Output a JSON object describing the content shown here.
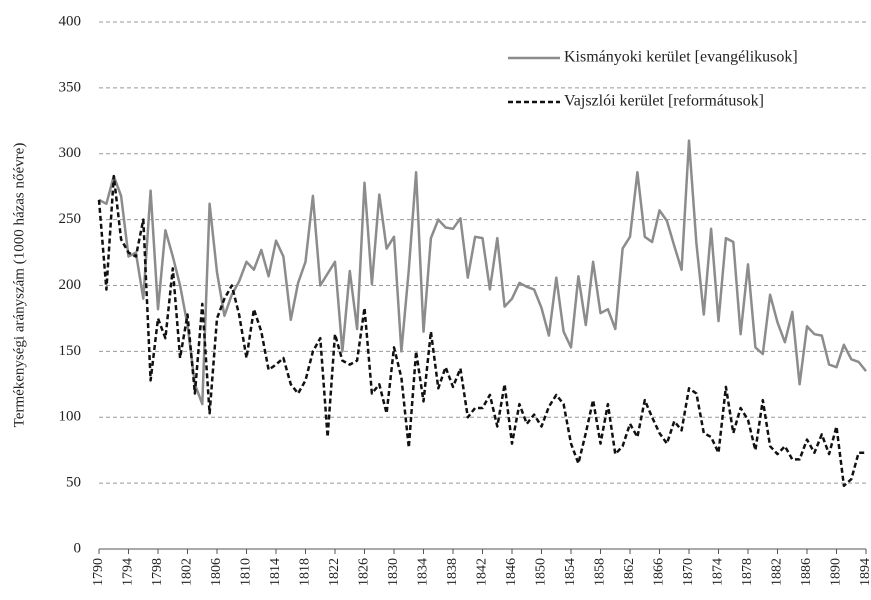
{
  "chart_data": {
    "type": "line",
    "y_label": "Termékenységi arányszám   (1000 házas nőévre)",
    "x": [
      1790,
      1791,
      1792,
      1793,
      1794,
      1795,
      1796,
      1797,
      1798,
      1799,
      1800,
      1801,
      1802,
      1803,
      1804,
      1805,
      1806,
      1807,
      1808,
      1809,
      1810,
      1811,
      1812,
      1813,
      1814,
      1815,
      1816,
      1817,
      1818,
      1819,
      1820,
      1821,
      1822,
      1823,
      1824,
      1825,
      1826,
      1827,
      1828,
      1829,
      1830,
      1831,
      1832,
      1833,
      1834,
      1835,
      1836,
      1837,
      1838,
      1839,
      1840,
      1841,
      1842,
      1843,
      1844,
      1845,
      1846,
      1847,
      1848,
      1849,
      1850,
      1851,
      1852,
      1853,
      1854,
      1855,
      1856,
      1857,
      1858,
      1859,
      1860,
      1861,
      1862,
      1863,
      1864,
      1865,
      1866,
      1867,
      1868,
      1869,
      1870,
      1871,
      1872,
      1873,
      1874,
      1875,
      1876,
      1877,
      1878,
      1879,
      1880,
      1881,
      1882,
      1883,
      1884,
      1885,
      1886,
      1887,
      1888,
      1889,
      1890,
      1891,
      1892,
      1893,
      1894
    ],
    "series": [
      {
        "name": "Kismányoki kerület [evangélikusok]",
        "color": "#8c8c8c",
        "dashed": false,
        "values": [
          265,
          262,
          283,
          268,
          222,
          225,
          190,
          272,
          182,
          242,
          222,
          200,
          170,
          125,
          110,
          262,
          210,
          177,
          193,
          203,
          218,
          212,
          227,
          207,
          234,
          222,
          174,
          202,
          218,
          268,
          200,
          209,
          218,
          150,
          211,
          167,
          278,
          201,
          269,
          228,
          237,
          150,
          212,
          286,
          165,
          236,
          250,
          244,
          243,
          251,
          206,
          237,
          236,
          197,
          236,
          184,
          190,
          202,
          199,
          197,
          183,
          162,
          206,
          165,
          153,
          207,
          170,
          218,
          179,
          182,
          167,
          228,
          237,
          286,
          237,
          233,
          257,
          249,
          230,
          212,
          310,
          232,
          178,
          243,
          173,
          236,
          233,
          163,
          216,
          153,
          148,
          193,
          172,
          157,
          180,
          125,
          169,
          163,
          162,
          140,
          138,
          155,
          144,
          142,
          135
        ]
      },
      {
        "name": "Vajszlói kerület [reformátusok]",
        "color": "#111111",
        "dashed": true,
        "values": [
          265,
          197,
          283,
          235,
          225,
          222,
          250,
          128,
          175,
          160,
          213,
          145,
          178,
          118,
          186,
          103,
          175,
          190,
          200,
          178,
          145,
          182,
          165,
          136,
          140,
          145,
          125,
          118,
          128,
          150,
          160,
          85,
          163,
          143,
          140,
          143,
          183,
          118,
          125,
          103,
          153,
          130,
          77,
          150,
          112,
          165,
          122,
          138,
          123,
          137,
          100,
          107,
          107,
          117,
          93,
          125,
          80,
          110,
          95,
          102,
          93,
          108,
          117,
          110,
          80,
          65,
          88,
          113,
          80,
          110,
          72,
          78,
          95,
          85,
          113,
          100,
          88,
          80,
          97,
          90,
          122,
          118,
          88,
          85,
          73,
          123,
          88,
          107,
          98,
          75,
          113,
          78,
          72,
          78,
          68,
          68,
          83,
          73,
          87,
          72,
          93,
          48,
          53,
          73,
          73
        ]
      }
    ],
    "xlim": [
      1790,
      1894
    ],
    "xticks": [
      1790,
      1794,
      1798,
      1802,
      1806,
      1810,
      1814,
      1818,
      1822,
      1826,
      1830,
      1834,
      1838,
      1842,
      1846,
      1850,
      1854,
      1858,
      1862,
      1866,
      1870,
      1874,
      1878,
      1882,
      1886,
      1890,
      1894
    ],
    "ylim": [
      0,
      400
    ],
    "yticks": [
      0,
      50,
      100,
      150,
      200,
      250,
      300,
      350,
      400
    ],
    "grid": true,
    "legend": "upper-right"
  }
}
